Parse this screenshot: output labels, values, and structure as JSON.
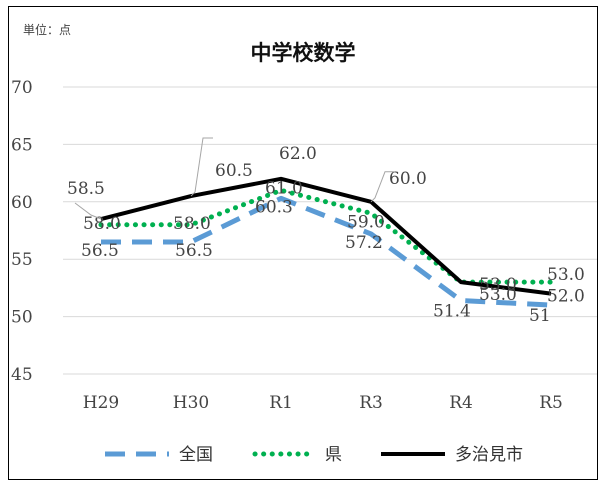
{
  "unit_label": "単位：点",
  "chart_data": {
    "type": "line",
    "title": "中学校数学",
    "xlabel": "",
    "ylabel": "",
    "categories": [
      "H29",
      "H30",
      "R1",
      "R3",
      "R4",
      "R5"
    ],
    "ylim": [
      45,
      70
    ],
    "yticks": [
      45,
      50,
      55,
      60,
      65,
      70
    ],
    "grid": true,
    "legend_position": "bottom",
    "series": [
      {
        "name": "全国",
        "values": [
          56.5,
          56.5,
          60.3,
          57.2,
          51.4,
          51.0
        ],
        "labels": [
          "56.5",
          "56.5",
          "60.3",
          "57.2",
          "51.4",
          "51"
        ],
        "color": "#5b9bd5",
        "style": "dashed"
      },
      {
        "name": "県",
        "values": [
          58.0,
          58.0,
          61.0,
          59.0,
          53.0,
          53.0
        ],
        "labels": [
          "58.0",
          "58.0",
          "61.0",
          "59.0",
          "53.0",
          "53.0"
        ],
        "color": "#00b050",
        "style": "dotted"
      },
      {
        "name": "多治見市",
        "values": [
          58.5,
          60.5,
          62.0,
          60.0,
          53.0,
          52.0
        ],
        "labels": [
          "58.5",
          "60.5",
          "62.0",
          "60.0",
          "53.0",
          "52.0"
        ],
        "color": "#000000",
        "style": "solid"
      }
    ]
  }
}
